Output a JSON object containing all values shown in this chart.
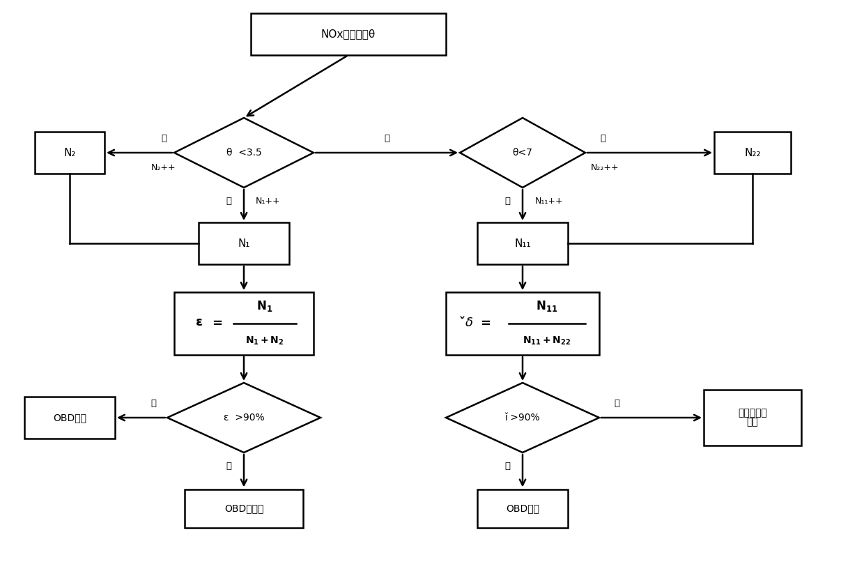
{
  "bg_color": "#ffffff",
  "box_color": "#ffffff",
  "box_edge": "#000000",
  "arrow_color": "#000000",
  "text_color": "#000000",
  "title": "NOx比排放値θ",
  "diamond1_label": "θ  <3.5",
  "diamond2_label": "θ<7",
  "box_N2": "N₂",
  "box_N1": "N₁",
  "box_N11": "N₁₁",
  "box_N22": "N₂₂",
  "diamond3_label": "ε  >90%",
  "diamond4_label": "ǐ >90%",
  "box_OBD1": "OBD报警",
  "box_OBD2": "OBD不动作",
  "box_OBD3": "OBD报警",
  "box_engine_line1": "发动机限速",
  "box_engine_line2": "限扔",
  "yes_label": "是",
  "no_label": "否",
  "N1pp": "N₁++",
  "N2pp": "N₂++",
  "N11pp": "N₁₁++",
  "N22pp": "N₂₂++"
}
